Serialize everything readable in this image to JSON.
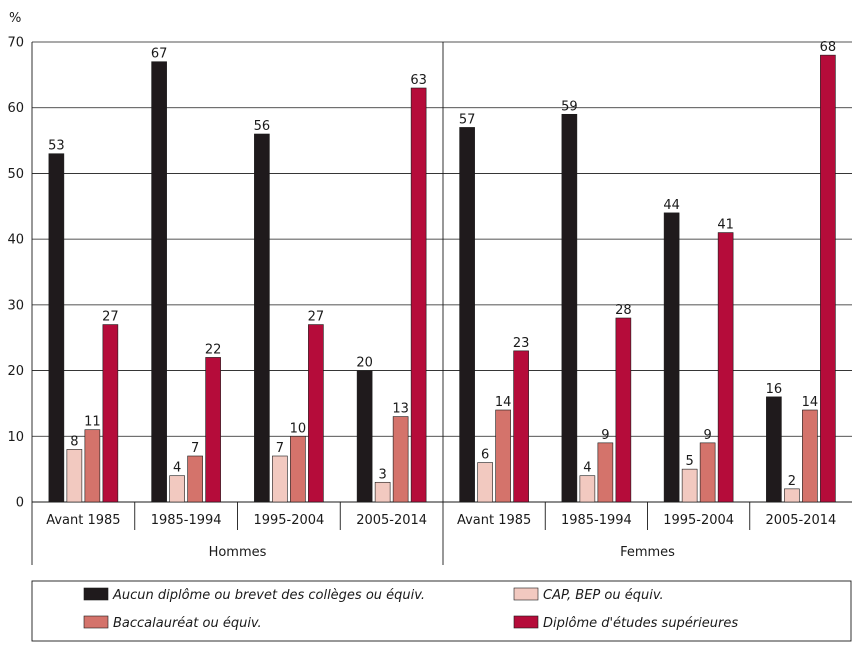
{
  "chart_data": {
    "type": "bar",
    "ylabel": "%",
    "ylim": [
      0,
      70
    ],
    "yticks": [
      0,
      10,
      20,
      30,
      40,
      50,
      60,
      70
    ],
    "grid": true,
    "legend_position": "bottom",
    "groups": [
      {
        "label": "Hommes",
        "categories": [
          "Avant 1985",
          "1985-1994",
          "1995-2004",
          "2005-2014"
        ]
      },
      {
        "label": "Femmes",
        "categories": [
          "Avant 1985",
          "1985-1994",
          "1995-2004",
          "2005-2014"
        ]
      }
    ],
    "series": [
      {
        "name": "Aucun diplôme ou brevet des collèges ou équiv.",
        "color": "#1f1a1c",
        "values": [
          53,
          67,
          56,
          20,
          57,
          59,
          44,
          16
        ]
      },
      {
        "name": "CAP, BEP ou équiv.",
        "color": "#f2c9c0",
        "values": [
          8,
          4,
          7,
          3,
          6,
          4,
          5,
          2
        ]
      },
      {
        "name": "Baccalauréat ou équiv.",
        "color": "#d4736b",
        "values": [
          11,
          7,
          10,
          13,
          14,
          9,
          9,
          14
        ]
      },
      {
        "name": "Diplôme d'études supérieures",
        "color": "#b50c3a",
        "values": [
          27,
          22,
          27,
          63,
          23,
          28,
          41,
          68
        ]
      }
    ],
    "bar_edge_color": "#1a1a1a",
    "grid_color": "#1a1a1a"
  }
}
